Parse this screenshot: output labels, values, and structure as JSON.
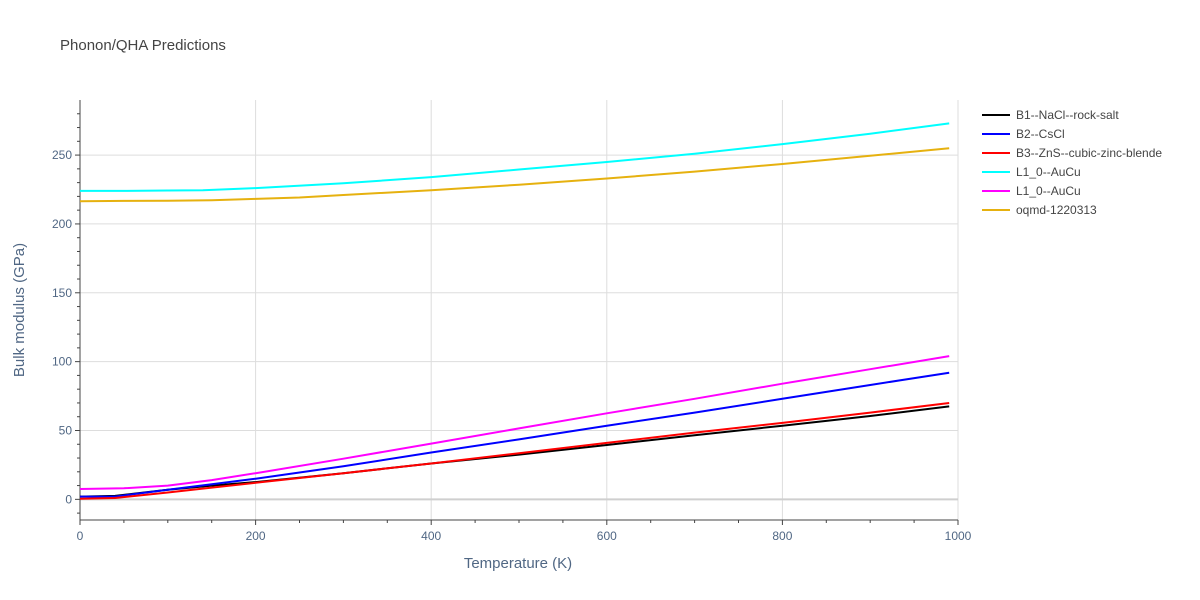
{
  "chart_data": {
    "type": "line",
    "title": "Phonon/QHA Predictions",
    "xlabel": "Temperature (K)",
    "ylabel": "Bulk modulus (GPa)",
    "xlim": [
      0,
      1000
    ],
    "ylim": [
      -15,
      290
    ],
    "xticks": [
      0,
      200,
      400,
      600,
      800,
      1000
    ],
    "yticks": [
      0,
      50,
      100,
      150,
      200,
      250
    ],
    "x_tick_labels": [
      "0",
      "200",
      "400",
      "600",
      "800",
      "1000"
    ],
    "y_tick_labels": [
      "0",
      "50",
      "100",
      "150",
      "200",
      "250"
    ],
    "grid": true,
    "legend_position": "right",
    "series": [
      {
        "name": "B1--NaCl--rock-salt",
        "color": "#000000",
        "x": [
          0,
          40,
          100,
          150,
          200,
          300,
          400,
          500,
          600,
          700,
          800,
          900,
          990
        ],
        "y": [
          2,
          2.5,
          7,
          10,
          12.5,
          19,
          26,
          32.5,
          39.5,
          46.5,
          53.5,
          60.5,
          67.5
        ]
      },
      {
        "name": "B2--CsCl",
        "color": "#0000ff",
        "x": [
          0,
          40,
          100,
          150,
          200,
          300,
          400,
          500,
          600,
          700,
          800,
          900,
          990
        ],
        "y": [
          2,
          2,
          7,
          11,
          15,
          24,
          34,
          43.5,
          53.5,
          63,
          73,
          83,
          92
        ]
      },
      {
        "name": "B3--ZnS--cubic-zinc-blende",
        "color": "#ff0000",
        "x": [
          0,
          40,
          100,
          150,
          200,
          300,
          400,
          500,
          600,
          700,
          800,
          900,
          990
        ],
        "y": [
          0.5,
          1,
          5,
          8.5,
          12,
          19,
          26,
          33.5,
          41,
          48.5,
          55.5,
          63,
          70
        ]
      },
      {
        "name": "L1_0--AuCu",
        "color": "#00ffff",
        "x": [
          0,
          50,
          100,
          140,
          200,
          300,
          400,
          500,
          600,
          700,
          800,
          900,
          990
        ],
        "y": [
          224,
          224,
          224.3,
          224.5,
          226,
          229.5,
          234,
          239.5,
          245,
          251,
          258,
          265.5,
          273
        ]
      },
      {
        "name": "L1_0--AuCu",
        "color": "#ff00ff",
        "x": [
          0,
          50,
          100,
          150,
          200,
          300,
          400,
          500,
          600,
          700,
          800,
          900,
          990
        ],
        "y": [
          7.5,
          8,
          10,
          14,
          19,
          29.5,
          40.5,
          51.5,
          62.5,
          73,
          84,
          94.5,
          104
        ]
      },
      {
        "name": "oqmd-1220313",
        "color": "#e6b10f",
        "x": [
          0,
          50,
          100,
          150,
          200,
          250,
          300,
          400,
          500,
          600,
          700,
          800,
          900,
          990
        ],
        "y": [
          216.5,
          216.7,
          216.9,
          217.2,
          218.2,
          219.2,
          221,
          224.5,
          228.5,
          233,
          238,
          243.5,
          249.5,
          255
        ]
      }
    ]
  }
}
